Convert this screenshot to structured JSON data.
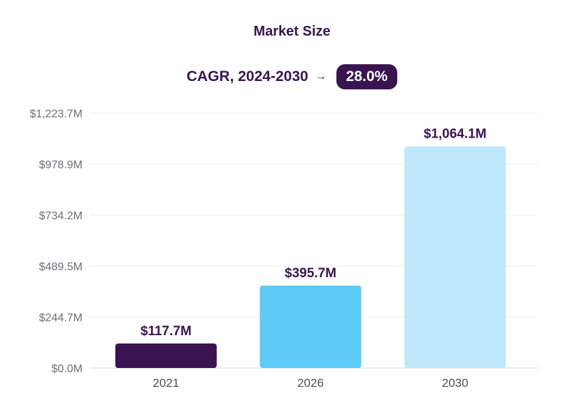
{
  "chart_data": {
    "type": "bar",
    "title": "Market Size",
    "subtitle_label": "CAGR, 2024-2030",
    "subtitle_arrow": "→",
    "subtitle_value": "28.0%",
    "categories": [
      "2021",
      "2026",
      "2030"
    ],
    "values": [
      117.7,
      395.7,
      1064.1
    ],
    "data_labels": [
      "$117.7M",
      "$395.7M",
      "$1,064.1M"
    ],
    "bar_colors": [
      "#3a1450",
      "#5ecbf7",
      "#bfe9fb"
    ],
    "yticks": [
      0.0,
      244.7,
      489.5,
      734.2,
      978.9,
      1223.7
    ],
    "ytick_labels": [
      "$0.0M",
      "$244.7M",
      "$489.5M",
      "$734.2M",
      "$978.9M",
      "$1,223.7M"
    ],
    "ylim": [
      0,
      1223.7
    ],
    "grid": true,
    "xlabel": "",
    "ylabel": ""
  }
}
